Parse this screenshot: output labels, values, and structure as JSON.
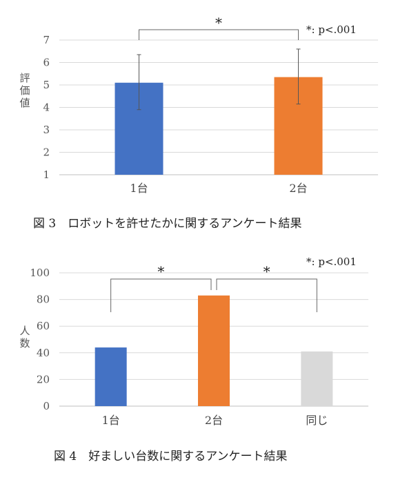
{
  "chart_data": [
    {
      "type": "bar",
      "caption": "図 3　ロボットを許せたかに関するアンケート結果",
      "ylabel": "評価値",
      "ylim": [
        1,
        7
      ],
      "yticks": [
        "1",
        "2",
        "3",
        "4",
        "5",
        "6",
        "7"
      ],
      "categories": [
        "1台",
        "2台"
      ],
      "values": [
        5.1,
        5.35
      ],
      "error_bars": [
        {
          "low": 3.9,
          "high": 6.35
        },
        {
          "low": 4.15,
          "high": 6.6
        }
      ],
      "colors": [
        "#4472C4",
        "#ED7D31"
      ],
      "significance": [
        {
          "from": 0,
          "to": 1,
          "label": "*"
        }
      ],
      "note": "*: p<.001",
      "grid": true
    },
    {
      "type": "bar",
      "caption": "図 4　好ましい台数に関するアンケート結果",
      "ylabel": "人数",
      "ylim": [
        0,
        100
      ],
      "yticks": [
        "0",
        "20",
        "40",
        "60",
        "80",
        "100"
      ],
      "categories": [
        "1台",
        "2台",
        "同じ"
      ],
      "values": [
        44,
        83,
        41
      ],
      "colors": [
        "#4472C4",
        "#ED7D31",
        "#D9D9D9"
      ],
      "significance": [
        {
          "from": 0,
          "to": 1,
          "label": "*"
        },
        {
          "from": 1,
          "to": 2,
          "label": "*"
        }
      ],
      "note": "*: p<.001",
      "grid": true
    }
  ]
}
